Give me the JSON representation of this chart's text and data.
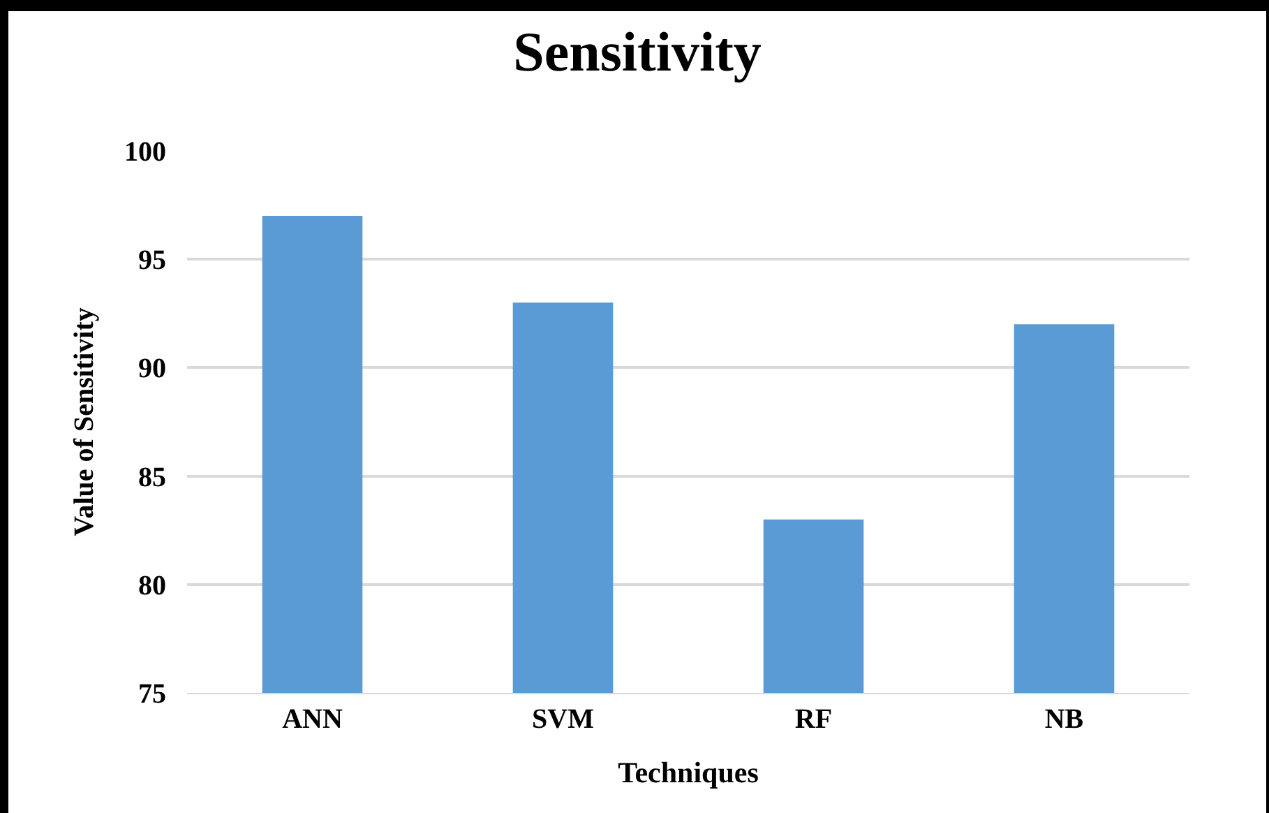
{
  "chart_data": {
    "type": "bar",
    "title": "Sensitivity",
    "xlabel": "Techniques",
    "ylabel": "Value of Sensitivity",
    "categories": [
      "ANN",
      "SVM",
      "RF",
      "NB"
    ],
    "values": [
      97,
      93,
      83,
      92
    ],
    "color": "#5b9bd5",
    "ylim": [
      75,
      100
    ],
    "yticks": [
      75,
      80,
      85,
      90,
      95,
      100
    ],
    "grid": "y"
  }
}
